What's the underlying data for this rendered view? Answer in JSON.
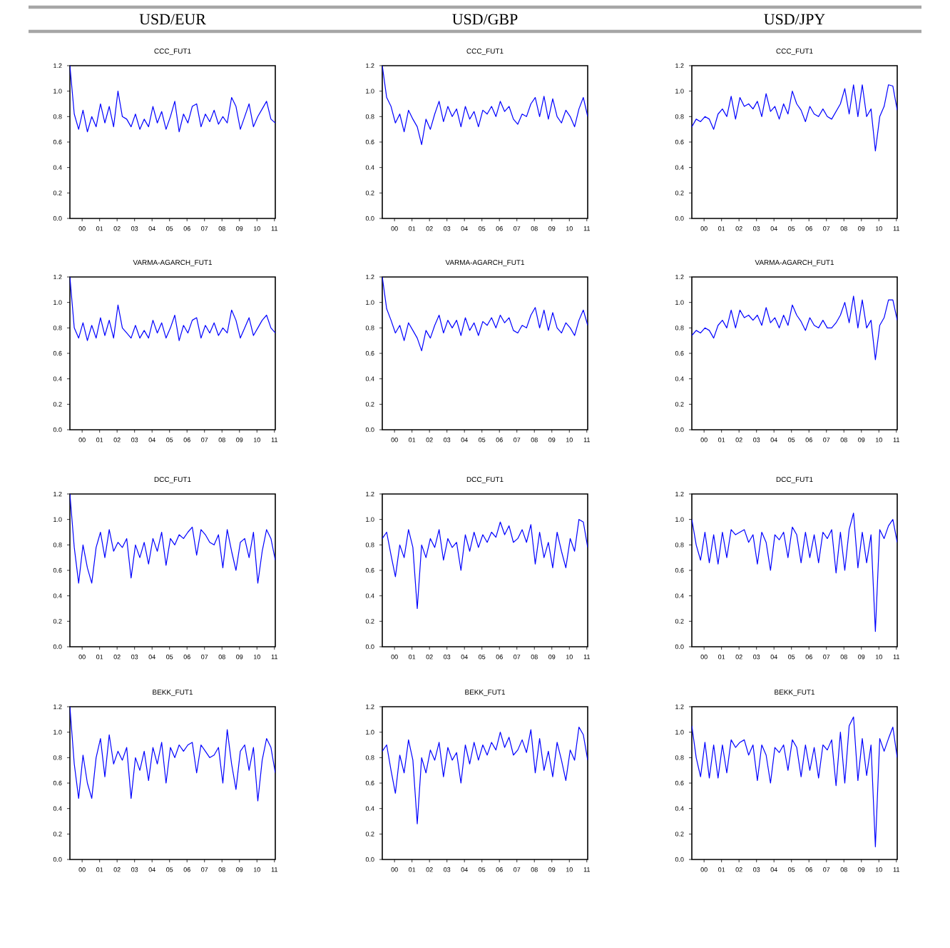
{
  "chart_data": [
    {
      "type": "line",
      "subtitle": "USD/EUR",
      "title": "CCC_FUT1",
      "color": "#0000ff",
      "xlim": [
        1999.3,
        2011.05
      ],
      "ylim": [
        0,
        1.2
      ],
      "xticks": [
        {
          "value": 2000,
          "label": "00"
        },
        {
          "value": 2001,
          "label": "01"
        },
        {
          "value": 2002,
          "label": "02"
        },
        {
          "value": 2003,
          "label": "03"
        },
        {
          "value": 2004,
          "label": "04"
        },
        {
          "value": 2005,
          "label": "05"
        },
        {
          "value": 2006,
          "label": "06"
        },
        {
          "value": 2007,
          "label": "07"
        },
        {
          "value": 2008,
          "label": "08"
        },
        {
          "value": 2009,
          "label": "09"
        },
        {
          "value": 2010,
          "label": "10"
        },
        {
          "value": 2011,
          "label": "11"
        }
      ],
      "yticks": [
        {
          "value": 0,
          "label": "0.0"
        },
        {
          "value": 0.2,
          "label": "0.2"
        },
        {
          "value": 0.4,
          "label": "0.4"
        },
        {
          "value": 0.6,
          "label": "0.6"
        },
        {
          "value": 0.8,
          "label": "0.8"
        },
        {
          "value": 1.0,
          "label": "1.0"
        },
        {
          "value": 1.2,
          "label": "1.2"
        }
      ],
      "x": [
        1999.3,
        1999.55,
        1999.8,
        2000.05,
        2000.3,
        2000.55,
        2000.8,
        2001.05,
        2001.3,
        2001.55,
        2001.8,
        2002.05,
        2002.3,
        2002.55,
        2002.8,
        2003.05,
        2003.3,
        2003.55,
        2003.8,
        2004.05,
        2004.3,
        2004.55,
        2004.8,
        2005.05,
        2005.3,
        2005.55,
        2005.8,
        2006.05,
        2006.3,
        2006.55,
        2006.8,
        2007.05,
        2007.3,
        2007.55,
        2007.8,
        2008.05,
        2008.3,
        2008.55,
        2008.8,
        2009.05,
        2009.3,
        2009.55,
        2009.8,
        2010.05,
        2010.3,
        2010.55,
        2010.8,
        2011.05
      ],
      "values": [
        1.2,
        0.82,
        0.7,
        0.85,
        0.68,
        0.8,
        0.72,
        0.9,
        0.75,
        0.88,
        0.72,
        1.0,
        0.8,
        0.78,
        0.72,
        0.82,
        0.7,
        0.78,
        0.72,
        0.88,
        0.75,
        0.84,
        0.7,
        0.8,
        0.92,
        0.68,
        0.82,
        0.75,
        0.88,
        0.9,
        0.72,
        0.82,
        0.76,
        0.85,
        0.74,
        0.8,
        0.75,
        0.95,
        0.88,
        0.7,
        0.8,
        0.9,
        0.72,
        0.8,
        0.86,
        0.92,
        0.78,
        0.75
      ]
    },
    {
      "type": "line",
      "subtitle": "USD/GBP",
      "title": "CCC_FUT1",
      "color": "#0000ff",
      "xlim": [
        1999.3,
        2011.05
      ],
      "ylim": [
        0,
        1.2
      ],
      "xticks": [
        {
          "value": 2000,
          "label": "00"
        },
        {
          "value": 2001,
          "label": "01"
        },
        {
          "value": 2002,
          "label": "02"
        },
        {
          "value": 2003,
          "label": "03"
        },
        {
          "value": 2004,
          "label": "04"
        },
        {
          "value": 2005,
          "label": "05"
        },
        {
          "value": 2006,
          "label": "06"
        },
        {
          "value": 2007,
          "label": "07"
        },
        {
          "value": 2008,
          "label": "08"
        },
        {
          "value": 2009,
          "label": "09"
        },
        {
          "value": 2010,
          "label": "10"
        },
        {
          "value": 2011,
          "label": "11"
        }
      ],
      "yticks": [
        {
          "value": 0,
          "label": "0.0"
        },
        {
          "value": 0.2,
          "label": "0.2"
        },
        {
          "value": 0.4,
          "label": "0.4"
        },
        {
          "value": 0.6,
          "label": "0.6"
        },
        {
          "value": 0.8,
          "label": "0.8"
        },
        {
          "value": 1.0,
          "label": "1.0"
        },
        {
          "value": 1.2,
          "label": "1.2"
        }
      ],
      "x": [
        1999.3,
        1999.55,
        1999.8,
        2000.05,
        2000.3,
        2000.55,
        2000.8,
        2001.05,
        2001.3,
        2001.55,
        2001.8,
        2002.05,
        2002.3,
        2002.55,
        2002.8,
        2003.05,
        2003.3,
        2003.55,
        2003.8,
        2004.05,
        2004.3,
        2004.55,
        2004.8,
        2005.05,
        2005.3,
        2005.55,
        2005.8,
        2006.05,
        2006.3,
        2006.55,
        2006.8,
        2007.05,
        2007.3,
        2007.55,
        2007.8,
        2008.05,
        2008.3,
        2008.55,
        2008.8,
        2009.05,
        2009.3,
        2009.55,
        2009.8,
        2010.05,
        2010.3,
        2010.55,
        2010.8,
        2011.05
      ],
      "values": [
        1.2,
        0.95,
        0.88,
        0.75,
        0.82,
        0.68,
        0.85,
        0.78,
        0.72,
        0.58,
        0.78,
        0.7,
        0.82,
        0.92,
        0.76,
        0.88,
        0.8,
        0.86,
        0.72,
        0.88,
        0.78,
        0.84,
        0.72,
        0.85,
        0.82,
        0.88,
        0.8,
        0.92,
        0.84,
        0.88,
        0.78,
        0.74,
        0.82,
        0.8,
        0.9,
        0.95,
        0.8,
        0.96,
        0.78,
        0.94,
        0.8,
        0.75,
        0.85,
        0.8,
        0.72,
        0.86,
        0.95,
        0.8
      ]
    },
    {
      "type": "line",
      "subtitle": "USD/JPY",
      "title": "CCC_FUT1",
      "color": "#0000ff",
      "xlim": [
        1999.3,
        2011.05
      ],
      "ylim": [
        0,
        1.2
      ],
      "xticks": [
        {
          "value": 2000,
          "label": "00"
        },
        {
          "value": 2001,
          "label": "01"
        },
        {
          "value": 2002,
          "label": "02"
        },
        {
          "value": 2003,
          "label": "03"
        },
        {
          "value": 2004,
          "label": "04"
        },
        {
          "value": 2005,
          "label": "05"
        },
        {
          "value": 2006,
          "label": "06"
        },
        {
          "value": 2007,
          "label": "07"
        },
        {
          "value": 2008,
          "label": "08"
        },
        {
          "value": 2009,
          "label": "09"
        },
        {
          "value": 2010,
          "label": "10"
        },
        {
          "value": 2011,
          "label": "11"
        }
      ],
      "yticks": [
        {
          "value": 0,
          "label": "0.0"
        },
        {
          "value": 0.2,
          "label": "0.2"
        },
        {
          "value": 0.4,
          "label": "0.4"
        },
        {
          "value": 0.6,
          "label": "0.6"
        },
        {
          "value": 0.8,
          "label": "0.8"
        },
        {
          "value": 1.0,
          "label": "1.0"
        },
        {
          "value": 1.2,
          "label": "1.2"
        }
      ],
      "x": [
        1999.3,
        1999.55,
        1999.8,
        2000.05,
        2000.3,
        2000.55,
        2000.8,
        2001.05,
        2001.3,
        2001.55,
        2001.8,
        2002.05,
        2002.3,
        2002.55,
        2002.8,
        2003.05,
        2003.3,
        2003.55,
        2003.8,
        2004.05,
        2004.3,
        2004.55,
        2004.8,
        2005.05,
        2005.3,
        2005.55,
        2005.8,
        2006.05,
        2006.3,
        2006.55,
        2006.8,
        2007.05,
        2007.3,
        2007.55,
        2007.8,
        2008.05,
        2008.3,
        2008.55,
        2008.8,
        2009.05,
        2009.3,
        2009.55,
        2009.8,
        2010.05,
        2010.3,
        2010.55,
        2010.8,
        2011.05
      ],
      "values": [
        0.72,
        0.78,
        0.76,
        0.8,
        0.78,
        0.7,
        0.82,
        0.86,
        0.8,
        0.96,
        0.78,
        0.95,
        0.88,
        0.9,
        0.86,
        0.92,
        0.8,
        0.98,
        0.84,
        0.88,
        0.78,
        0.9,
        0.82,
        1.0,
        0.9,
        0.85,
        0.76,
        0.88,
        0.82,
        0.8,
        0.86,
        0.8,
        0.78,
        0.84,
        0.9,
        1.02,
        0.82,
        1.05,
        0.8,
        1.05,
        0.8,
        0.86,
        0.53,
        0.8,
        0.88,
        1.05,
        1.04,
        0.85
      ]
    },
    {
      "type": "line",
      "title": "VARMA-AGARCH_FUT1",
      "color": "#0000ff",
      "xlim": [
        1999.3,
        2011.05
      ],
      "ylim": [
        0,
        1.2
      ],
      "xticks": [
        {
          "value": 2000,
          "label": "00"
        },
        {
          "value": 2001,
          "label": "01"
        },
        {
          "value": 2002,
          "label": "02"
        },
        {
          "value": 2003,
          "label": "03"
        },
        {
          "value": 2004,
          "label": "04"
        },
        {
          "value": 2005,
          "label": "05"
        },
        {
          "value": 2006,
          "label": "06"
        },
        {
          "value": 2007,
          "label": "07"
        },
        {
          "value": 2008,
          "label": "08"
        },
        {
          "value": 2009,
          "label": "09"
        },
        {
          "value": 2010,
          "label": "10"
        },
        {
          "value": 2011,
          "label": "11"
        }
      ],
      "yticks": [
        {
          "value": 0,
          "label": "0.0"
        },
        {
          "value": 0.2,
          "label": "0.2"
        },
        {
          "value": 0.4,
          "label": "0.4"
        },
        {
          "value": 0.6,
          "label": "0.6"
        },
        {
          "value": 0.8,
          "label": "0.8"
        },
        {
          "value": 1.0,
          "label": "1.0"
        },
        {
          "value": 1.2,
          "label": "1.2"
        }
      ],
      "x": [
        1999.3,
        1999.55,
        1999.8,
        2000.05,
        2000.3,
        2000.55,
        2000.8,
        2001.05,
        2001.3,
        2001.55,
        2001.8,
        2002.05,
        2002.3,
        2002.55,
        2002.8,
        2003.05,
        2003.3,
        2003.55,
        2003.8,
        2004.05,
        2004.3,
        2004.55,
        2004.8,
        2005.05,
        2005.3,
        2005.55,
        2005.8,
        2006.05,
        2006.3,
        2006.55,
        2006.8,
        2007.05,
        2007.3,
        2007.55,
        2007.8,
        2008.05,
        2008.3,
        2008.55,
        2008.8,
        2009.05,
        2009.3,
        2009.55,
        2009.8,
        2010.05,
        2010.3,
        2010.55,
        2010.8,
        2011.05
      ],
      "values": [
        1.2,
        0.8,
        0.72,
        0.84,
        0.7,
        0.82,
        0.72,
        0.88,
        0.74,
        0.86,
        0.72,
        0.98,
        0.8,
        0.76,
        0.72,
        0.82,
        0.72,
        0.78,
        0.72,
        0.86,
        0.76,
        0.84,
        0.72,
        0.8,
        0.9,
        0.7,
        0.82,
        0.76,
        0.86,
        0.88,
        0.72,
        0.82,
        0.76,
        0.84,
        0.74,
        0.8,
        0.76,
        0.94,
        0.86,
        0.72,
        0.8,
        0.88,
        0.74,
        0.8,
        0.86,
        0.9,
        0.8,
        0.76
      ]
    },
    {
      "type": "line",
      "title": "VARMA-AGARCH_FUT1",
      "color": "#0000ff",
      "xlim": [
        1999.3,
        2011.05
      ],
      "ylim": [
        0,
        1.2
      ],
      "xticks": [
        {
          "value": 2000,
          "label": "00"
        },
        {
          "value": 2001,
          "label": "01"
        },
        {
          "value": 2002,
          "label": "02"
        },
        {
          "value": 2003,
          "label": "03"
        },
        {
          "value": 2004,
          "label": "04"
        },
        {
          "value": 2005,
          "label": "05"
        },
        {
          "value": 2006,
          "label": "06"
        },
        {
          "value": 2007,
          "label": "07"
        },
        {
          "value": 2008,
          "label": "08"
        },
        {
          "value": 2009,
          "label": "09"
        },
        {
          "value": 2010,
          "label": "10"
        },
        {
          "value": 2011,
          "label": "11"
        }
      ],
      "yticks": [
        {
          "value": 0,
          "label": "0.0"
        },
        {
          "value": 0.2,
          "label": "0.2"
        },
        {
          "value": 0.4,
          "label": "0.4"
        },
        {
          "value": 0.6,
          "label": "0.6"
        },
        {
          "value": 0.8,
          "label": "0.8"
        },
        {
          "value": 1.0,
          "label": "1.0"
        },
        {
          "value": 1.2,
          "label": "1.2"
        }
      ],
      "x": [
        1999.3,
        1999.55,
        1999.8,
        2000.05,
        2000.3,
        2000.55,
        2000.8,
        2001.05,
        2001.3,
        2001.55,
        2001.8,
        2002.05,
        2002.3,
        2002.55,
        2002.8,
        2003.05,
        2003.3,
        2003.55,
        2003.8,
        2004.05,
        2004.3,
        2004.55,
        2004.8,
        2005.05,
        2005.3,
        2005.55,
        2005.8,
        2006.05,
        2006.3,
        2006.55,
        2006.8,
        2007.05,
        2007.3,
        2007.55,
        2007.8,
        2008.05,
        2008.3,
        2008.55,
        2008.8,
        2009.05,
        2009.3,
        2009.55,
        2009.8,
        2010.05,
        2010.3,
        2010.55,
        2010.8,
        2011.05
      ],
      "values": [
        1.2,
        0.95,
        0.86,
        0.76,
        0.82,
        0.7,
        0.84,
        0.78,
        0.72,
        0.62,
        0.78,
        0.72,
        0.82,
        0.9,
        0.76,
        0.86,
        0.8,
        0.86,
        0.74,
        0.88,
        0.78,
        0.84,
        0.74,
        0.85,
        0.82,
        0.88,
        0.8,
        0.9,
        0.84,
        0.88,
        0.78,
        0.76,
        0.82,
        0.8,
        0.9,
        0.96,
        0.8,
        0.94,
        0.78,
        0.92,
        0.8,
        0.76,
        0.84,
        0.8,
        0.74,
        0.86,
        0.94,
        0.82
      ]
    },
    {
      "type": "line",
      "title": "VARMA-AGARCH_FUT1",
      "color": "#0000ff",
      "xlim": [
        1999.3,
        2011.05
      ],
      "ylim": [
        0,
        1.2
      ],
      "xticks": [
        {
          "value": 2000,
          "label": "00"
        },
        {
          "value": 2001,
          "label": "01"
        },
        {
          "value": 2002,
          "label": "02"
        },
        {
          "value": 2003,
          "label": "03"
        },
        {
          "value": 2004,
          "label": "04"
        },
        {
          "value": 2005,
          "label": "05"
        },
        {
          "value": 2006,
          "label": "06"
        },
        {
          "value": 2007,
          "label": "07"
        },
        {
          "value": 2008,
          "label": "08"
        },
        {
          "value": 2009,
          "label": "09"
        },
        {
          "value": 2010,
          "label": "10"
        },
        {
          "value": 2011,
          "label": "11"
        }
      ],
      "yticks": [
        {
          "value": 0,
          "label": "0.0"
        },
        {
          "value": 0.2,
          "label": "0.2"
        },
        {
          "value": 0.4,
          "label": "0.4"
        },
        {
          "value": 0.6,
          "label": "0.6"
        },
        {
          "value": 0.8,
          "label": "0.8"
        },
        {
          "value": 1.0,
          "label": "1.0"
        },
        {
          "value": 1.2,
          "label": "1.2"
        }
      ],
      "x": [
        1999.3,
        1999.55,
        1999.8,
        2000.05,
        2000.3,
        2000.55,
        2000.8,
        2001.05,
        2001.3,
        2001.55,
        2001.8,
        2002.05,
        2002.3,
        2002.55,
        2002.8,
        2003.05,
        2003.3,
        2003.55,
        2003.8,
        2004.05,
        2004.3,
        2004.55,
        2004.8,
        2005.05,
        2005.3,
        2005.55,
        2005.8,
        2006.05,
        2006.3,
        2006.55,
        2006.8,
        2007.05,
        2007.3,
        2007.55,
        2007.8,
        2008.05,
        2008.3,
        2008.55,
        2008.8,
        2009.05,
        2009.3,
        2009.55,
        2009.8,
        2010.05,
        2010.3,
        2010.55,
        2010.8,
        2011.05
      ],
      "values": [
        0.74,
        0.78,
        0.76,
        0.8,
        0.78,
        0.72,
        0.82,
        0.86,
        0.8,
        0.94,
        0.8,
        0.94,
        0.88,
        0.9,
        0.86,
        0.9,
        0.82,
        0.96,
        0.84,
        0.88,
        0.8,
        0.9,
        0.82,
        0.98,
        0.9,
        0.85,
        0.78,
        0.88,
        0.82,
        0.8,
        0.86,
        0.8,
        0.8,
        0.84,
        0.9,
        1.0,
        0.84,
        1.05,
        0.8,
        1.02,
        0.8,
        0.86,
        0.55,
        0.82,
        0.88,
        1.02,
        1.02,
        0.86
      ]
    },
    {
      "type": "line",
      "title": "DCC_FUT1",
      "color": "#0000ff",
      "xlim": [
        1999.3,
        2011.05
      ],
      "ylim": [
        0,
        1.2
      ],
      "xticks": [
        {
          "value": 2000,
          "label": "00"
        },
        {
          "value": 2001,
          "label": "01"
        },
        {
          "value": 2002,
          "label": "02"
        },
        {
          "value": 2003,
          "label": "03"
        },
        {
          "value": 2004,
          "label": "04"
        },
        {
          "value": 2005,
          "label": "05"
        },
        {
          "value": 2006,
          "label": "06"
        },
        {
          "value": 2007,
          "label": "07"
        },
        {
          "value": 2008,
          "label": "08"
        },
        {
          "value": 2009,
          "label": "09"
        },
        {
          "value": 2010,
          "label": "10"
        },
        {
          "value": 2011,
          "label": "11"
        }
      ],
      "yticks": [
        {
          "value": 0,
          "label": "0.0"
        },
        {
          "value": 0.2,
          "label": "0.2"
        },
        {
          "value": 0.4,
          "label": "0.4"
        },
        {
          "value": 0.6,
          "label": "0.6"
        },
        {
          "value": 0.8,
          "label": "0.8"
        },
        {
          "value": 1.0,
          "label": "1.0"
        },
        {
          "value": 1.2,
          "label": "1.2"
        }
      ],
      "x": [
        1999.3,
        1999.55,
        1999.8,
        2000.05,
        2000.3,
        2000.55,
        2000.8,
        2001.05,
        2001.3,
        2001.55,
        2001.8,
        2002.05,
        2002.3,
        2002.55,
        2002.8,
        2003.05,
        2003.3,
        2003.55,
        2003.8,
        2004.05,
        2004.3,
        2004.55,
        2004.8,
        2005.05,
        2005.3,
        2005.55,
        2005.8,
        2006.05,
        2006.3,
        2006.55,
        2006.8,
        2007.05,
        2007.3,
        2007.55,
        2007.8,
        2008.05,
        2008.3,
        2008.55,
        2008.8,
        2009.05,
        2009.3,
        2009.55,
        2009.8,
        2010.05,
        2010.3,
        2010.55,
        2010.8,
        2011.05
      ],
      "values": [
        1.2,
        0.78,
        0.5,
        0.8,
        0.62,
        0.5,
        0.78,
        0.9,
        0.7,
        0.92,
        0.75,
        0.82,
        0.78,
        0.85,
        0.54,
        0.8,
        0.7,
        0.82,
        0.65,
        0.85,
        0.75,
        0.9,
        0.64,
        0.85,
        0.8,
        0.88,
        0.85,
        0.9,
        0.94,
        0.72,
        0.92,
        0.88,
        0.82,
        0.8,
        0.88,
        0.62,
        0.92,
        0.75,
        0.6,
        0.82,
        0.85,
        0.7,
        0.9,
        0.5,
        0.75,
        0.92,
        0.85,
        0.68
      ]
    },
    {
      "type": "line",
      "title": "DCC_FUT1",
      "color": "#0000ff",
      "xlim": [
        1999.3,
        2011.05
      ],
      "ylim": [
        0,
        1.2
      ],
      "xticks": [
        {
          "value": 2000,
          "label": "00"
        },
        {
          "value": 2001,
          "label": "01"
        },
        {
          "value": 2002,
          "label": "02"
        },
        {
          "value": 2003,
          "label": "03"
        },
        {
          "value": 2004,
          "label": "04"
        },
        {
          "value": 2005,
          "label": "05"
        },
        {
          "value": 2006,
          "label": "06"
        },
        {
          "value": 2007,
          "label": "07"
        },
        {
          "value": 2008,
          "label": "08"
        },
        {
          "value": 2009,
          "label": "09"
        },
        {
          "value": 2010,
          "label": "10"
        },
        {
          "value": 2011,
          "label": "11"
        }
      ],
      "yticks": [
        {
          "value": 0,
          "label": "0.0"
        },
        {
          "value": 0.2,
          "label": "0.2"
        },
        {
          "value": 0.4,
          "label": "0.4"
        },
        {
          "value": 0.6,
          "label": "0.6"
        },
        {
          "value": 0.8,
          "label": "0.8"
        },
        {
          "value": 1.0,
          "label": "1.0"
        },
        {
          "value": 1.2,
          "label": "1.2"
        }
      ],
      "x": [
        1999.3,
        1999.55,
        1999.8,
        2000.05,
        2000.3,
        2000.55,
        2000.8,
        2001.05,
        2001.3,
        2001.55,
        2001.8,
        2002.05,
        2002.3,
        2002.55,
        2002.8,
        2003.05,
        2003.3,
        2003.55,
        2003.8,
        2004.05,
        2004.3,
        2004.55,
        2004.8,
        2005.05,
        2005.3,
        2005.55,
        2005.8,
        2006.05,
        2006.3,
        2006.55,
        2006.8,
        2007.05,
        2007.3,
        2007.55,
        2007.8,
        2008.05,
        2008.3,
        2008.55,
        2008.8,
        2009.05,
        2009.3,
        2009.55,
        2009.8,
        2010.05,
        2010.3,
        2010.55,
        2010.8,
        2011.05
      ],
      "values": [
        0.85,
        0.9,
        0.72,
        0.55,
        0.8,
        0.7,
        0.92,
        0.78,
        0.3,
        0.8,
        0.7,
        0.85,
        0.78,
        0.92,
        0.68,
        0.85,
        0.78,
        0.82,
        0.6,
        0.88,
        0.75,
        0.9,
        0.78,
        0.88,
        0.82,
        0.9,
        0.86,
        0.98,
        0.88,
        0.95,
        0.82,
        0.85,
        0.92,
        0.82,
        0.96,
        0.65,
        0.9,
        0.7,
        0.82,
        0.62,
        0.9,
        0.75,
        0.62,
        0.85,
        0.75,
        1.0,
        0.98,
        0.78
      ]
    },
    {
      "type": "line",
      "title": "DCC_FUT1",
      "color": "#0000ff",
      "xlim": [
        1999.3,
        2011.05
      ],
      "ylim": [
        0,
        1.2
      ],
      "xticks": [
        {
          "value": 2000,
          "label": "00"
        },
        {
          "value": 2001,
          "label": "01"
        },
        {
          "value": 2002,
          "label": "02"
        },
        {
          "value": 2003,
          "label": "03"
        },
        {
          "value": 2004,
          "label": "04"
        },
        {
          "value": 2005,
          "label": "05"
        },
        {
          "value": 2006,
          "label": "06"
        },
        {
          "value": 2007,
          "label": "07"
        },
        {
          "value": 2008,
          "label": "08"
        },
        {
          "value": 2009,
          "label": "09"
        },
        {
          "value": 2010,
          "label": "10"
        },
        {
          "value": 2011,
          "label": "11"
        }
      ],
      "yticks": [
        {
          "value": 0,
          "label": "0.0"
        },
        {
          "value": 0.2,
          "label": "0.2"
        },
        {
          "value": 0.4,
          "label": "0.4"
        },
        {
          "value": 0.6,
          "label": "0.6"
        },
        {
          "value": 0.8,
          "label": "0.8"
        },
        {
          "value": 1.0,
          "label": "1.0"
        },
        {
          "value": 1.2,
          "label": "1.2"
        }
      ],
      "x": [
        1999.3,
        1999.55,
        1999.8,
        2000.05,
        2000.3,
        2000.55,
        2000.8,
        2001.05,
        2001.3,
        2001.55,
        2001.8,
        2002.05,
        2002.3,
        2002.55,
        2002.8,
        2003.05,
        2003.3,
        2003.55,
        2003.8,
        2004.05,
        2004.3,
        2004.55,
        2004.8,
        2005.05,
        2005.3,
        2005.55,
        2005.8,
        2006.05,
        2006.3,
        2006.55,
        2006.8,
        2007.05,
        2007.3,
        2007.55,
        2007.8,
        2008.05,
        2008.3,
        2008.55,
        2008.8,
        2009.05,
        2009.3,
        2009.55,
        2009.8,
        2010.05,
        2010.3,
        2010.55,
        2010.8,
        2011.05
      ],
      "values": [
        1.0,
        0.8,
        0.68,
        0.9,
        0.66,
        0.88,
        0.65,
        0.9,
        0.7,
        0.92,
        0.88,
        0.9,
        0.92,
        0.82,
        0.88,
        0.65,
        0.9,
        0.82,
        0.6,
        0.88,
        0.84,
        0.9,
        0.7,
        0.94,
        0.88,
        0.66,
        0.9,
        0.7,
        0.88,
        0.66,
        0.9,
        0.85,
        0.92,
        0.58,
        0.9,
        0.6,
        0.92,
        1.05,
        0.62,
        0.9,
        0.66,
        0.88,
        0.12,
        0.92,
        0.85,
        0.95,
        1.0,
        0.82
      ]
    },
    {
      "type": "line",
      "title": "BEKK_FUT1",
      "color": "#0000ff",
      "xlim": [
        1999.3,
        2011.05
      ],
      "ylim": [
        0,
        1.2
      ],
      "xticks": [
        {
          "value": 2000,
          "label": "00"
        },
        {
          "value": 2001,
          "label": "01"
        },
        {
          "value": 2002,
          "label": "02"
        },
        {
          "value": 2003,
          "label": "03"
        },
        {
          "value": 2004,
          "label": "04"
        },
        {
          "value": 2005,
          "label": "05"
        },
        {
          "value": 2006,
          "label": "06"
        },
        {
          "value": 2007,
          "label": "07"
        },
        {
          "value": 2008,
          "label": "08"
        },
        {
          "value": 2009,
          "label": "09"
        },
        {
          "value": 2010,
          "label": "10"
        },
        {
          "value": 2011,
          "label": "11"
        }
      ],
      "yticks": [
        {
          "value": 0,
          "label": "0.0"
        },
        {
          "value": 0.2,
          "label": "0.2"
        },
        {
          "value": 0.4,
          "label": "0.4"
        },
        {
          "value": 0.6,
          "label": "0.6"
        },
        {
          "value": 0.8,
          "label": "0.8"
        },
        {
          "value": 1.0,
          "label": "1.0"
        },
        {
          "value": 1.2,
          "label": "1.2"
        }
      ],
      "x": [
        1999.3,
        1999.55,
        1999.8,
        2000.05,
        2000.3,
        2000.55,
        2000.8,
        2001.05,
        2001.3,
        2001.55,
        2001.8,
        2002.05,
        2002.3,
        2002.55,
        2002.8,
        2003.05,
        2003.3,
        2003.55,
        2003.8,
        2004.05,
        2004.3,
        2004.55,
        2004.8,
        2005.05,
        2005.3,
        2005.55,
        2005.8,
        2006.05,
        2006.3,
        2006.55,
        2006.8,
        2007.05,
        2007.3,
        2007.55,
        2007.8,
        2008.05,
        2008.3,
        2008.55,
        2008.8,
        2009.05,
        2009.3,
        2009.55,
        2009.8,
        2010.05,
        2010.3,
        2010.55,
        2010.8,
        2011.05
      ],
      "values": [
        1.2,
        0.75,
        0.48,
        0.82,
        0.6,
        0.48,
        0.8,
        0.95,
        0.65,
        0.98,
        0.75,
        0.85,
        0.78,
        0.88,
        0.48,
        0.8,
        0.7,
        0.85,
        0.62,
        0.88,
        0.75,
        0.92,
        0.6,
        0.88,
        0.8,
        0.9,
        0.85,
        0.9,
        0.92,
        0.68,
        0.9,
        0.85,
        0.8,
        0.82,
        0.88,
        0.6,
        1.02,
        0.75,
        0.55,
        0.85,
        0.9,
        0.7,
        0.88,
        0.46,
        0.78,
        0.95,
        0.88,
        0.68
      ]
    },
    {
      "type": "line",
      "title": "BEKK_FUT1",
      "color": "#0000ff",
      "xlim": [
        1999.3,
        2011.05
      ],
      "ylim": [
        0,
        1.2
      ],
      "xticks": [
        {
          "value": 2000,
          "label": "00"
        },
        {
          "value": 2001,
          "label": "01"
        },
        {
          "value": 2002,
          "label": "02"
        },
        {
          "value": 2003,
          "label": "03"
        },
        {
          "value": 2004,
          "label": "04"
        },
        {
          "value": 2005,
          "label": "05"
        },
        {
          "value": 2006,
          "label": "06"
        },
        {
          "value": 2007,
          "label": "07"
        },
        {
          "value": 2008,
          "label": "08"
        },
        {
          "value": 2009,
          "label": "09"
        },
        {
          "value": 2010,
          "label": "10"
        },
        {
          "value": 2011,
          "label": "11"
        }
      ],
      "yticks": [
        {
          "value": 0,
          "label": "0.0"
        },
        {
          "value": 0.2,
          "label": "0.2"
        },
        {
          "value": 0.4,
          "label": "0.4"
        },
        {
          "value": 0.6,
          "label": "0.6"
        },
        {
          "value": 0.8,
          "label": "0.8"
        },
        {
          "value": 1.0,
          "label": "1.0"
        },
        {
          "value": 1.2,
          "label": "1.2"
        }
      ],
      "x": [
        1999.3,
        1999.55,
        1999.8,
        2000.05,
        2000.3,
        2000.55,
        2000.8,
        2001.05,
        2001.3,
        2001.55,
        2001.8,
        2002.05,
        2002.3,
        2002.55,
        2002.8,
        2003.05,
        2003.3,
        2003.55,
        2003.8,
        2004.05,
        2004.3,
        2004.55,
        2004.8,
        2005.05,
        2005.3,
        2005.55,
        2005.8,
        2006.05,
        2006.3,
        2006.55,
        2006.8,
        2007.05,
        2007.3,
        2007.55,
        2007.8,
        2008.05,
        2008.3,
        2008.55,
        2008.8,
        2009.05,
        2009.3,
        2009.55,
        2009.8,
        2010.05,
        2010.3,
        2010.55,
        2010.8,
        2011.05
      ],
      "values": [
        0.85,
        0.9,
        0.7,
        0.52,
        0.82,
        0.68,
        0.94,
        0.78,
        0.28,
        0.8,
        0.68,
        0.86,
        0.78,
        0.92,
        0.65,
        0.88,
        0.78,
        0.84,
        0.6,
        0.9,
        0.75,
        0.92,
        0.78,
        0.9,
        0.82,
        0.92,
        0.86,
        1.0,
        0.88,
        0.96,
        0.82,
        0.86,
        0.94,
        0.84,
        1.02,
        0.68,
        0.95,
        0.7,
        0.85,
        0.65,
        0.92,
        0.78,
        0.62,
        0.86,
        0.78,
        1.04,
        0.98,
        0.78
      ]
    },
    {
      "type": "line",
      "title": "BEKK_FUT1",
      "color": "#0000ff",
      "xlim": [
        1999.3,
        2011.05
      ],
      "ylim": [
        0,
        1.2
      ],
      "xticks": [
        {
          "value": 2000,
          "label": "00"
        },
        {
          "value": 2001,
          "label": "01"
        },
        {
          "value": 2002,
          "label": "02"
        },
        {
          "value": 2003,
          "label": "03"
        },
        {
          "value": 2004,
          "label": "04"
        },
        {
          "value": 2005,
          "label": "05"
        },
        {
          "value": 2006,
          "label": "06"
        },
        {
          "value": 2007,
          "label": "07"
        },
        {
          "value": 2008,
          "label": "08"
        },
        {
          "value": 2009,
          "label": "09"
        },
        {
          "value": 2010,
          "label": "10"
        },
        {
          "value": 2011,
          "label": "11"
        }
      ],
      "yticks": [
        {
          "value": 0,
          "label": "0.0"
        },
        {
          "value": 0.2,
          "label": "0.2"
        },
        {
          "value": 0.4,
          "label": "0.4"
        },
        {
          "value": 0.6,
          "label": "0.6"
        },
        {
          "value": 0.8,
          "label": "0.8"
        },
        {
          "value": 1.0,
          "label": "1.0"
        },
        {
          "value": 1.2,
          "label": "1.2"
        }
      ],
      "x": [
        1999.3,
        1999.55,
        1999.8,
        2000.05,
        2000.3,
        2000.55,
        2000.8,
        2001.05,
        2001.3,
        2001.55,
        2001.8,
        2002.05,
        2002.3,
        2002.55,
        2002.8,
        2003.05,
        2003.3,
        2003.55,
        2003.8,
        2004.05,
        2004.3,
        2004.55,
        2004.8,
        2005.05,
        2005.3,
        2005.55,
        2005.8,
        2006.05,
        2006.3,
        2006.55,
        2006.8,
        2007.05,
        2007.3,
        2007.55,
        2007.8,
        2008.05,
        2008.3,
        2008.55,
        2008.8,
        2009.05,
        2009.3,
        2009.55,
        2009.8,
        2010.05,
        2010.3,
        2010.55,
        2010.8,
        2011.05
      ],
      "values": [
        1.05,
        0.8,
        0.65,
        0.92,
        0.64,
        0.9,
        0.64,
        0.9,
        0.68,
        0.94,
        0.88,
        0.92,
        0.94,
        0.82,
        0.9,
        0.62,
        0.9,
        0.82,
        0.6,
        0.88,
        0.84,
        0.9,
        0.7,
        0.94,
        0.88,
        0.65,
        0.9,
        0.7,
        0.88,
        0.64,
        0.9,
        0.86,
        0.94,
        0.58,
        1.0,
        0.6,
        1.05,
        1.12,
        0.62,
        0.95,
        0.66,
        0.9,
        0.1,
        0.95,
        0.85,
        0.95,
        1.04,
        0.8
      ]
    }
  ]
}
